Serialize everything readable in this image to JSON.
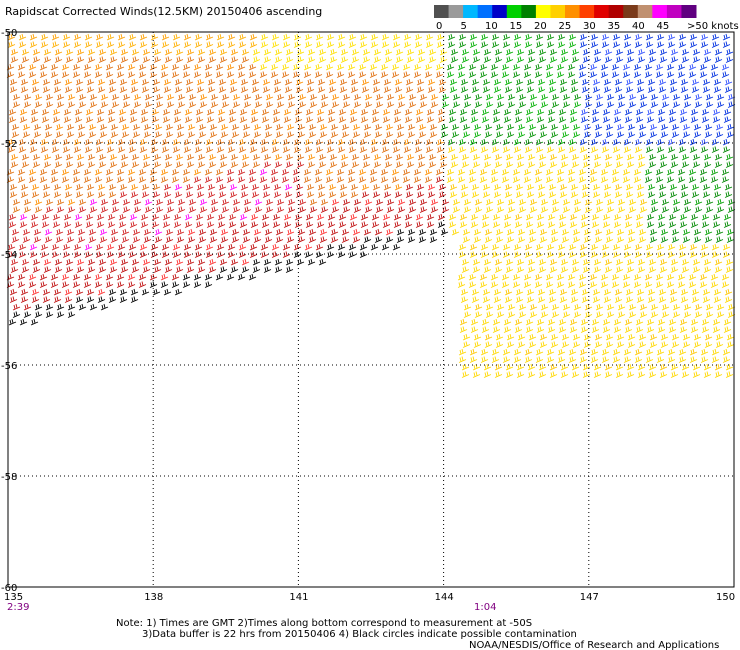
{
  "title": "Rapidscat Corrected Winds(12.5KM) 20150406 ascending",
  "legend": {
    "labels": [
      "0",
      "5",
      "10",
      "15",
      "20",
      "25",
      "30",
      "35",
      "40",
      "45",
      ">50 knots"
    ],
    "colors": [
      "#505050",
      "#9a9a9a",
      "#00b8ff",
      "#0070ff",
      "#0000c8",
      "#00d000",
      "#008000",
      "#ffff00",
      "#ffd000",
      "#ff9000",
      "#ff4000",
      "#e00000",
      "#b00000",
      "#7a3a1a",
      "#c09070",
      "#ff00ff",
      "#c000c0",
      "#600080"
    ]
  },
  "map": {
    "lon_range": [
      135,
      150
    ],
    "lat_range": [
      -60,
      -50
    ],
    "x_ticks": [
      "135",
      "138",
      "141",
      "144",
      "147",
      "150"
    ],
    "y_ticks": [
      "-50",
      "-52",
      "-54",
      "-56",
      "-58",
      "-60"
    ],
    "grid": "dotted"
  },
  "times": [
    "2:39",
    "1:04"
  ],
  "notes": {
    "line1": "Note: 1) Times are GMT 2)Times along bottom correspond to measurement at -50S",
    "line2": "3)Data buffer is 22 hrs from 20150406 4) Black circles indicate possible contamination",
    "credit": "NOAA/NESDIS/Office of Research and Applications"
  }
}
